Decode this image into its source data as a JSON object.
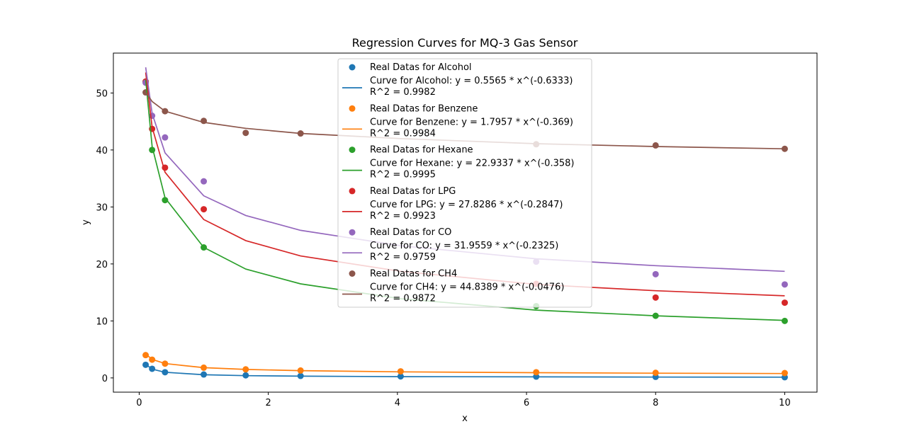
{
  "chart_data": {
    "type": "scatter",
    "title": "Regression Curves for MQ-3 Gas Sensor",
    "xlabel": "x",
    "ylabel": "y",
    "xlim": [
      -0.4,
      10.5
    ],
    "ylim": [
      -2.5,
      57
    ],
    "x_ticks": [
      0,
      2,
      4,
      6,
      8,
      10
    ],
    "y_ticks": [
      0,
      10,
      20,
      30,
      40,
      50
    ],
    "grid": false,
    "legend_position": "top-center",
    "curve_x": [
      0.1,
      0.2,
      0.4,
      1.0,
      1.65,
      2.5,
      4.05,
      6.15,
      8.0,
      10.0
    ],
    "series": [
      {
        "name": "Alcohol",
        "color": "#1f77b4",
        "scatter_label": "Real Datas for Alcohol",
        "curve_label": "Curve for Alcohol: y = 0.5565 * x^(-0.6333)",
        "r2_label": "R^2 = 0.9982",
        "points": [
          [
            0.1,
            2.3
          ],
          [
            0.2,
            1.6
          ],
          [
            0.4,
            1.0
          ],
          [
            1.0,
            0.6
          ],
          [
            1.65,
            0.45
          ],
          [
            2.5,
            0.35
          ],
          [
            4.05,
            0.27
          ],
          [
            6.15,
            0.23
          ],
          [
            8.0,
            0.18
          ],
          [
            10.0,
            0.12
          ]
        ],
        "curve_y": [
          2.39,
          1.54,
          0.99,
          0.56,
          0.4,
          0.31,
          0.22,
          0.18,
          0.15,
          0.13
        ]
      },
      {
        "name": "Benzene",
        "color": "#ff7f0e",
        "scatter_label": "Real Datas for Benzene",
        "curve_label": "Curve for Benzene: y = 1.7957 * x^(-0.369)",
        "r2_label": "R^2 = 0.9984",
        "points": [
          [
            0.1,
            4.0
          ],
          [
            0.2,
            3.2
          ],
          [
            0.4,
            2.5
          ],
          [
            1.0,
            1.8
          ],
          [
            1.65,
            1.5
          ],
          [
            2.5,
            1.3
          ],
          [
            4.05,
            1.15
          ],
          [
            6.15,
            1.0
          ],
          [
            8.0,
            0.9
          ],
          [
            10.0,
            0.85
          ]
        ],
        "curve_y": [
          4.2,
          3.25,
          2.52,
          1.8,
          1.49,
          1.28,
          1.07,
          0.92,
          0.83,
          0.77
        ]
      },
      {
        "name": "Hexane",
        "color": "#2ca02c",
        "scatter_label": "Real Datas for Hexane",
        "curve_label": "Curve for Hexane: y = 22.9337 * x^(-0.358)",
        "r2_label": "R^2 = 0.9995",
        "points": [
          [
            0.1,
            52.0
          ],
          [
            0.2,
            40.0
          ],
          [
            0.4,
            31.2
          ],
          [
            1.0,
            22.9
          ],
          [
            6.15,
            12.6
          ],
          [
            8.0,
            10.9
          ],
          [
            10.0,
            10.0
          ]
        ],
        "curve_y": [
          52.3,
          40.6,
          31.6,
          22.9,
          19.1,
          16.5,
          13.9,
          11.9,
          10.9,
          10.1
        ]
      },
      {
        "name": "LPG",
        "color": "#d62728",
        "scatter_label": "Real Datas for LPG",
        "curve_label": "Curve for LPG: y = 27.8286 * x^(-0.2847)",
        "r2_label": "R^2 = 0.9923",
        "points": [
          [
            0.1,
            52.0
          ],
          [
            0.2,
            43.7
          ],
          [
            0.4,
            36.9
          ],
          [
            1.0,
            29.6
          ],
          [
            6.15,
            16.5
          ],
          [
            8.0,
            14.1
          ],
          [
            10.0,
            13.2
          ]
        ],
        "curve_y": [
          53.6,
          44.0,
          36.1,
          27.8,
          24.1,
          21.4,
          18.7,
          16.4,
          15.3,
          14.4
        ]
      },
      {
        "name": "CO",
        "color": "#9467bd",
        "scatter_label": "Real Datas for CO",
        "curve_label": "Curve for CO: y = 31.9559 * x^(-0.2325)",
        "r2_label": "R^2 = 0.9759",
        "points": [
          [
            0.1,
            51.8
          ],
          [
            0.2,
            46.0
          ],
          [
            0.4,
            42.2
          ],
          [
            1.0,
            34.5
          ],
          [
            6.15,
            20.4
          ],
          [
            8.0,
            18.2
          ],
          [
            10.0,
            16.4
          ]
        ],
        "curve_y": [
          54.5,
          46.4,
          39.5,
          31.96,
          28.5,
          25.9,
          23.2,
          20.9,
          19.7,
          18.7
        ]
      },
      {
        "name": "CH4",
        "color": "#8c564b",
        "scatter_label": "Real Datas for CH4",
        "curve_label": "Curve for CH4: y = 44.8389 * x^(-0.0476)",
        "r2_label": "R^2 = 0.9872",
        "points": [
          [
            0.1,
            50.1
          ],
          [
            0.4,
            46.8
          ],
          [
            1.0,
            45.1
          ],
          [
            1.65,
            43.0
          ],
          [
            2.5,
            42.9
          ],
          [
            6.15,
            41.0
          ],
          [
            8.0,
            40.8
          ],
          [
            10.0,
            40.2
          ]
        ],
        "curve_y": [
          50.1,
          48.5,
          46.8,
          44.84,
          43.8,
          42.9,
          42.0,
          41.1,
          40.6,
          40.2
        ]
      }
    ]
  }
}
